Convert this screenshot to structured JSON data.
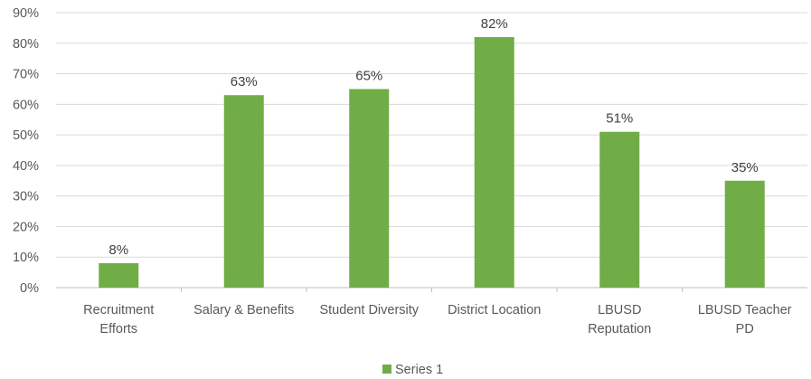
{
  "chart_data": {
    "type": "bar",
    "categories": [
      [
        "Recruitment",
        "Efforts"
      ],
      [
        "Salary & Benefits"
      ],
      [
        "Student Diversity"
      ],
      [
        "District Location"
      ],
      [
        "LBUSD",
        "Reputation"
      ],
      [
        "LBUSD Teacher",
        "PD"
      ]
    ],
    "series": [
      {
        "name": "Series 1",
        "values": [
          8,
          63,
          65,
          82,
          51,
          35
        ],
        "color": "#70AD47"
      }
    ],
    "data_labels": [
      "8%",
      "63%",
      "65%",
      "82%",
      "51%",
      "35%"
    ],
    "y_ticks": [
      "0%",
      "10%",
      "20%",
      "30%",
      "40%",
      "50%",
      "60%",
      "70%",
      "80%",
      "90%"
    ],
    "ylim": [
      0,
      90
    ],
    "grid": true,
    "legend_position": "bottom",
    "title": "",
    "xlabel": "",
    "ylabel": ""
  }
}
